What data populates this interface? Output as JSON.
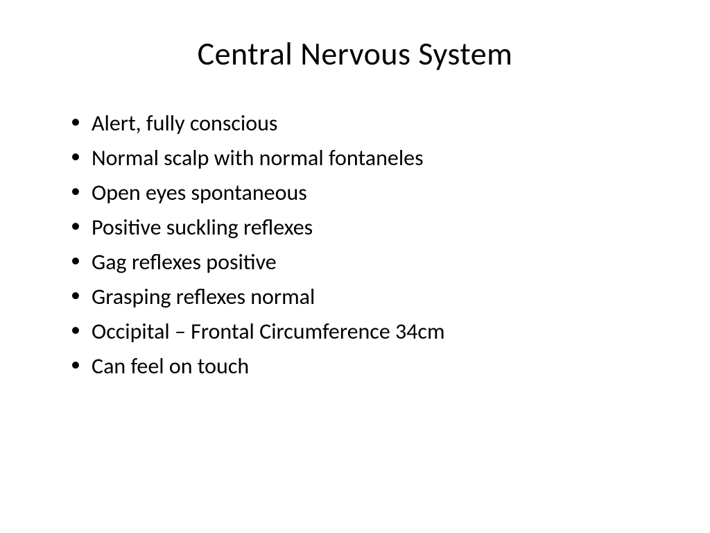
{
  "slide": {
    "title": "Central Nervous System",
    "bullets": [
      "Alert, fully conscious",
      "Normal scalp with normal fontaneles",
      "Open eyes spontaneous",
      "Positive suckling reflexes",
      "Gag reflexes positive",
      "Grasping reflexes normal",
      "Occipital – Frontal Circumference 34cm",
      "Can feel on touch"
    ],
    "background_color": "#ffffff",
    "text_color": "#000000",
    "title_fontsize": 46,
    "body_fontsize": 32,
    "font_family": "Calibri"
  }
}
